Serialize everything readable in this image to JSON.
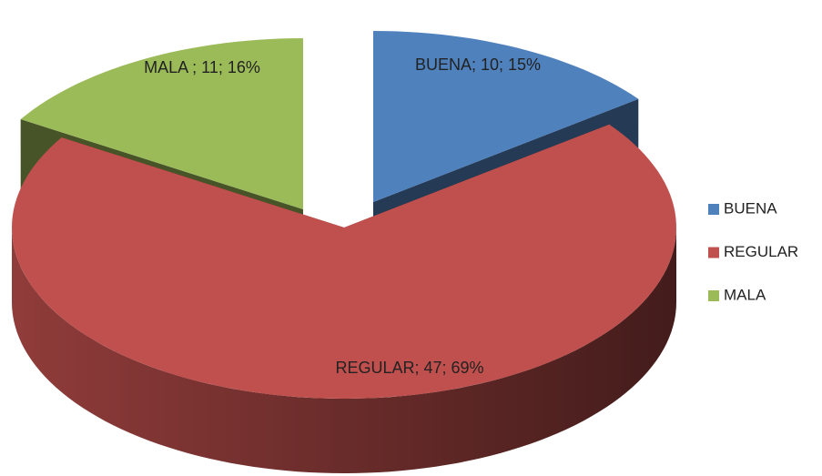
{
  "chart_data": {
    "type": "pie",
    "categories": [
      "BUENA",
      "REGULAR",
      "MALA"
    ],
    "values": [
      10,
      47,
      11
    ],
    "value_labels": [
      "BUENA; 10; 15%",
      "REGULAR; 47; 69%",
      "MALA ; 11; 16%"
    ],
    "colors": [
      "#4f81bd",
      "#c0504d",
      "#9bbb59"
    ],
    "legend": "right",
    "three_d": true,
    "exploded": true
  }
}
